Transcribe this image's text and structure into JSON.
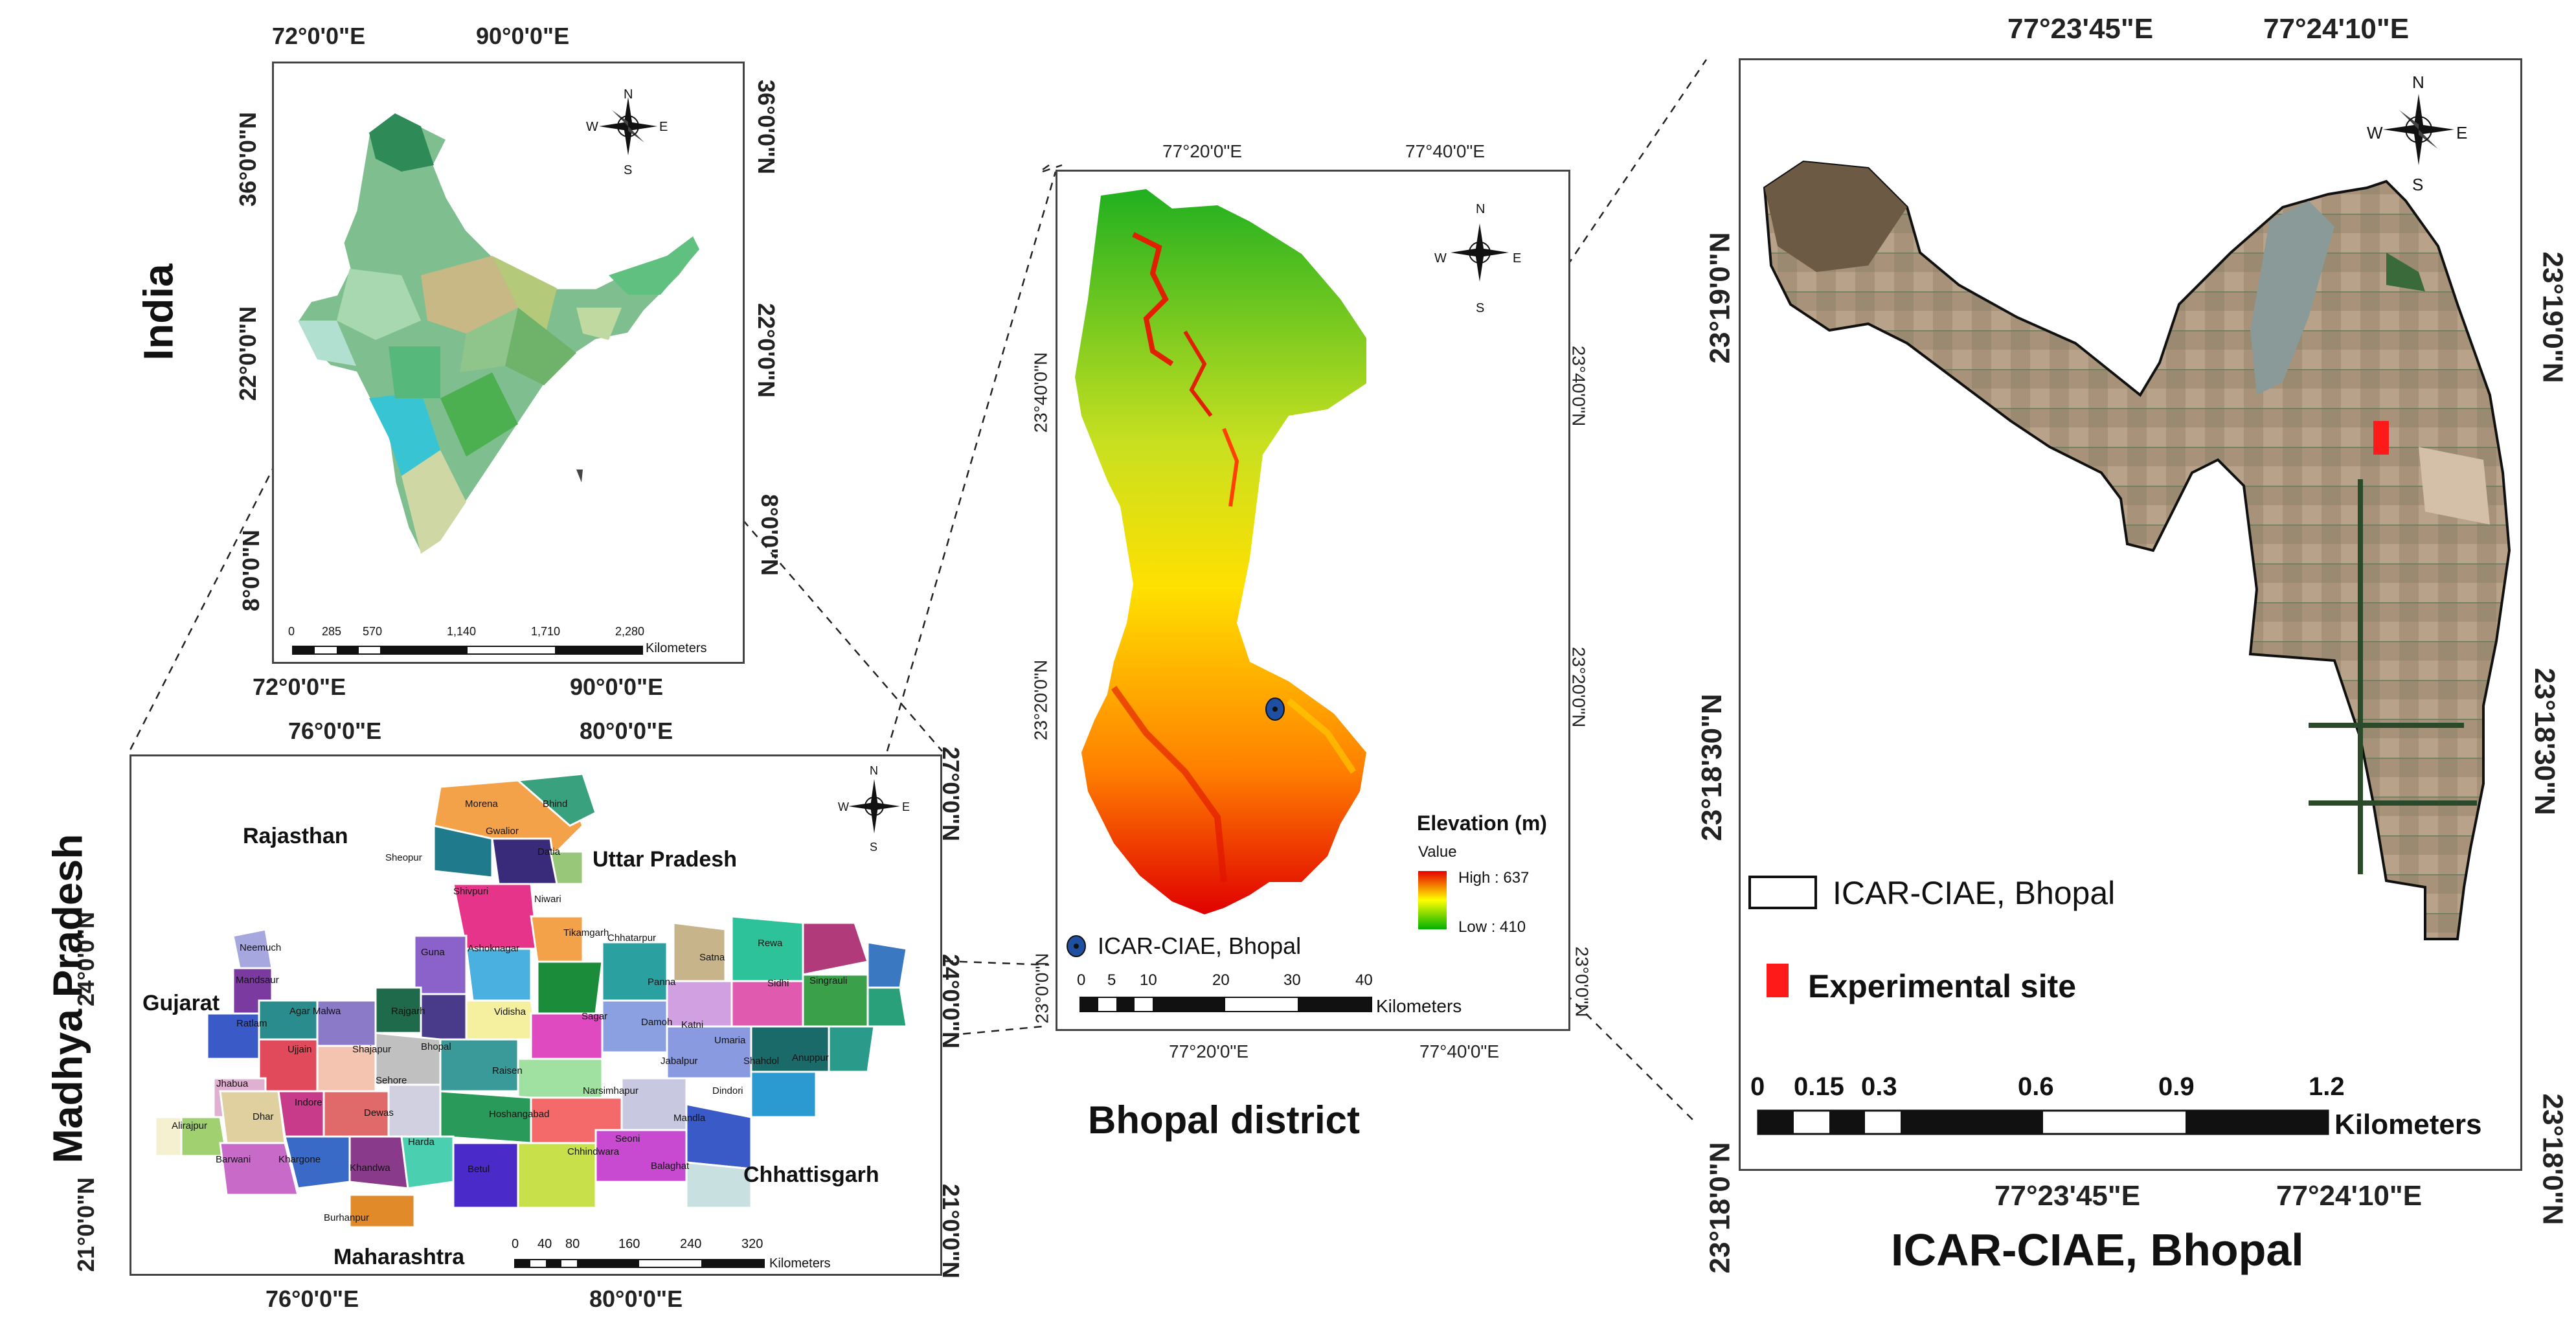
{
  "india": {
    "title": "India",
    "top_ticks": [
      "72°0'0\"E",
      "90°0'0\"E"
    ],
    "bottom_ticks": [
      "72°0'0\"E",
      "90°0'0\"E"
    ],
    "left_ticks": [
      "36°0'0\"N",
      "22°0'0\"N",
      "8°0'0\"N"
    ],
    "right_ticks": [
      "36°0'0\"N",
      "22°0'0\"N",
      "8°0'0\"N"
    ],
    "scale_numbers": [
      "0",
      "285",
      "570",
      "1,140",
      "1,710",
      "2,280"
    ],
    "scale_unit": "Kilometers"
  },
  "mp": {
    "title": "Madhya Pradesh",
    "top_ticks": [
      "76°0'0\"E",
      "80°0'0\"E"
    ],
    "bottom_ticks": [
      "76°0'0\"E",
      "80°0'0\"E"
    ],
    "left_ticks": [
      "24°0'0\"N",
      "21°0'0\"N"
    ],
    "right_ticks": [
      "27°0'0\"N",
      "24°0'0\"N",
      "21°0'0\"N"
    ],
    "neighbours": [
      "Rajasthan",
      "Uttar Pradesh",
      "Gujarat",
      "Chhattisgarh",
      "Maharashtra"
    ],
    "districts": [
      "Morena",
      "Bhind",
      "Sheopur",
      "Gwalior",
      "Datia",
      "Shivpuri",
      "Niwari",
      "Guna",
      "Ashoknagar",
      "Tikamgarh",
      "Chhatarpur",
      "Panna",
      "Satna",
      "Rewa",
      "Sidhi",
      "Singrauli",
      "Neemuch",
      "Mandsaur",
      "Ratlam",
      "Agar Malwa",
      "Rajgarh",
      "Vidisha",
      "Sagar",
      "Damoh",
      "Katni",
      "Umaria",
      "Shahdol",
      "Anuppur",
      "Ujjain",
      "Shajapur",
      "Bhopal",
      "Raisen",
      "Jabalpur",
      "Dindori",
      "Jhabua",
      "Dhar",
      "Indore",
      "Dewas",
      "Sehore",
      "Hoshangabad",
      "Narsimhapur",
      "Mandla",
      "Alirajpur",
      "Barwani",
      "Khargone",
      "Khandwa",
      "Harda",
      "Betul",
      "Chhindwara",
      "Seoni",
      "Balaghat",
      "Burhanpur"
    ],
    "scale_numbers": [
      "0",
      "40",
      "80",
      "160",
      "240",
      "320"
    ],
    "scale_unit": "Kilometers"
  },
  "bhopal": {
    "title": "Bhopal district",
    "top_ticks": [
      "77°20'0\"E",
      "77°40'0\"E"
    ],
    "bottom_ticks": [
      "77°20'0\"E",
      "77°40'0\"E"
    ],
    "left_ticks": [
      "23°40'0\"N",
      "23°20'0\"N",
      "23°0'0\"N"
    ],
    "right_ticks": [
      "23°40'0\"N",
      "23°20'0\"N",
      "23°0'0\"N"
    ],
    "legend_title": "Elevation (m)",
    "legend_value": "Value",
    "legend_high": "High : 637",
    "legend_low": "Low : 410",
    "marker_label": "ICAR-CIAE, Bhopal",
    "scale_numbers": [
      "0",
      "5",
      "10",
      "20",
      "30",
      "40"
    ],
    "scale_unit": "Kilometers",
    "colors": {
      "high": "#e60000",
      "mid": "#ffff00",
      "low": "#00b000"
    }
  },
  "icar": {
    "title": "ICAR-CIAE, Bhopal",
    "top_ticks": [
      "77°23'45\"E",
      "77°24'10\"E"
    ],
    "bottom_ticks": [
      "77°23'45\"E",
      "77°24'10\"E"
    ],
    "left_ticks": [
      "23°19'0\"N",
      "23°18'30\"N",
      "23°18'0\"N"
    ],
    "right_ticks": [
      "23°19'0\"N",
      "23°18'30\"N",
      "23°18'0\"N"
    ],
    "legend_boundary": "ICAR-CIAE, Bhopal",
    "legend_site": "Experimental site",
    "scale_numbers": [
      "0",
      "0.15",
      "0.3",
      "0.6",
      "0.9",
      "1.2"
    ],
    "scale_unit": "Kilometers",
    "colors": {
      "site": "#ff1a1a"
    }
  },
  "compass": {
    "n": "N",
    "s": "S",
    "e": "E",
    "w": "W"
  }
}
